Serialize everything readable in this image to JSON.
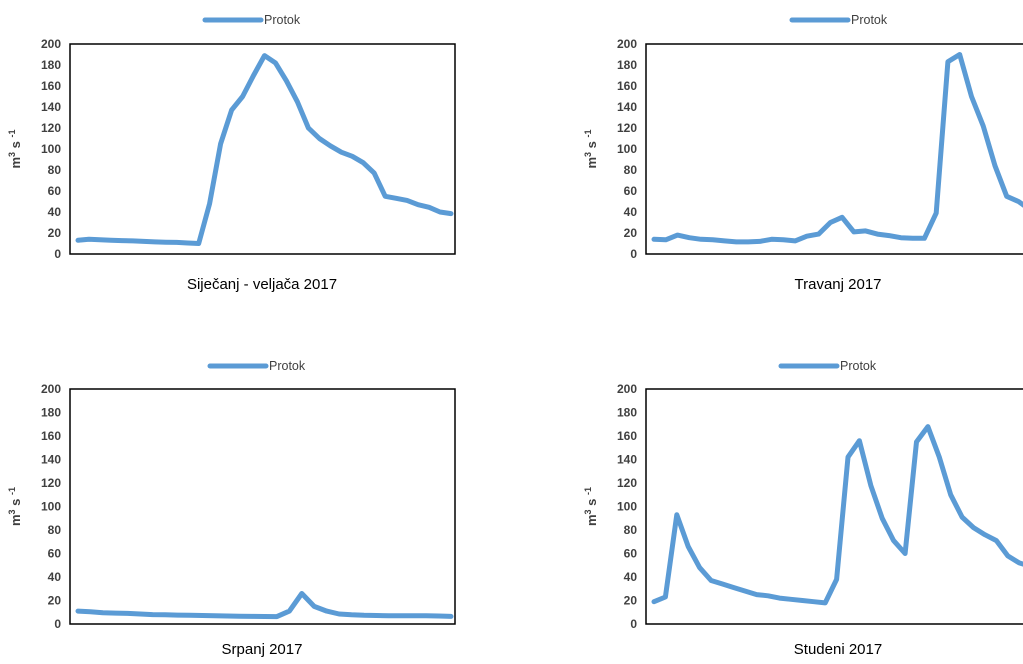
{
  "chart_data": [
    {
      "type": "line",
      "title": "Siječanj - veljača 2017",
      "ylabel": "m3 s -1",
      "ylabel_main": "m",
      "ylabel_sup1": "3",
      "ylabel_mid": " s ",
      "ylabel_sup2": "-1",
      "ylim": [
        0,
        200
      ],
      "yticks": [
        "0",
        "20",
        "40",
        "60",
        "80",
        "100",
        "120",
        "140",
        "160",
        "180",
        "200"
      ],
      "grid": false,
      "legend_position": "top",
      "series": [
        {
          "name": "Protok",
          "color": "#5B9BD5",
          "values": [
            13,
            14,
            13.5,
            13,
            12.8,
            12.5,
            12,
            11.5,
            11.2,
            11,
            10.5,
            10,
            48,
            105,
            137,
            150,
            170,
            189,
            182,
            165,
            145,
            120,
            110,
            103,
            97,
            93,
            87,
            77,
            55,
            53,
            51,
            47,
            44.5,
            40,
            38.5
          ]
        }
      ]
    },
    {
      "type": "line",
      "title": "Travanj 2017",
      "ylabel": "m3 s -1",
      "ylabel_main": "m",
      "ylabel_sup1": "3",
      "ylabel_mid": " s ",
      "ylabel_sup2": "-1",
      "ylim": [
        0,
        200
      ],
      "yticks": [
        "0",
        "20",
        "40",
        "60",
        "80",
        "100",
        "120",
        "140",
        "160",
        "180",
        "200"
      ],
      "grid": false,
      "legend_position": "top",
      "series": [
        {
          "name": "Protok",
          "color": "#5B9BD5",
          "values": [
            14,
            13.5,
            18,
            15.5,
            14,
            13.5,
            12.5,
            11.5,
            11.5,
            12,
            14,
            13.5,
            12.5,
            17,
            19,
            30,
            35,
            21,
            22,
            19,
            17.5,
            15.5,
            15,
            15,
            39,
            183,
            190,
            150,
            122,
            84,
            55,
            50,
            42,
            40
          ]
        }
      ]
    },
    {
      "type": "line",
      "title": "Srpanj 2017",
      "ylabel": "m3 s -1",
      "ylabel_main": "m",
      "ylabel_sup1": "3",
      "ylabel_mid": " s ",
      "ylabel_sup2": "-1",
      "ylim": [
        0,
        200
      ],
      "yticks": [
        "0",
        "20",
        "40",
        "60",
        "80",
        "100",
        "120",
        "140",
        "160",
        "180",
        "200"
      ],
      "grid": false,
      "legend_position": "top",
      "series": [
        {
          "name": "Protok",
          "color": "#5B9BD5",
          "values": [
            11,
            10.5,
            9.5,
            9.3,
            9,
            8.5,
            8,
            7.8,
            7.6,
            7.4,
            7.2,
            7,
            6.8,
            6.6,
            6.5,
            6.4,
            6.3,
            11,
            26,
            15,
            11,
            8.5,
            7.8,
            7.4,
            7.2,
            7.1,
            7,
            7,
            7,
            6.8,
            6.5
          ]
        }
      ]
    },
    {
      "type": "line",
      "title": "Studeni 2017",
      "ylabel": "m3 s -1",
      "ylabel_main": "m",
      "ylabel_sup1": "3",
      "ylabel_mid": " s ",
      "ylabel_sup2": "-1",
      "ylim": [
        0,
        200
      ],
      "yticks": [
        "0",
        "20",
        "40",
        "60",
        "80",
        "100",
        "120",
        "140",
        "160",
        "180",
        "200"
      ],
      "grid": false,
      "legend_position": "top",
      "series": [
        {
          "name": "Protok",
          "color": "#5B9BD5",
          "values": [
            19,
            23,
            93,
            66,
            48,
            37,
            34,
            31,
            28,
            25,
            24,
            22,
            21,
            20,
            19,
            18,
            38,
            142,
            156,
            118,
            90,
            71,
            60,
            155,
            168,
            142,
            110,
            91,
            82,
            76,
            71,
            58,
            52,
            49,
            44
          ]
        }
      ]
    }
  ]
}
